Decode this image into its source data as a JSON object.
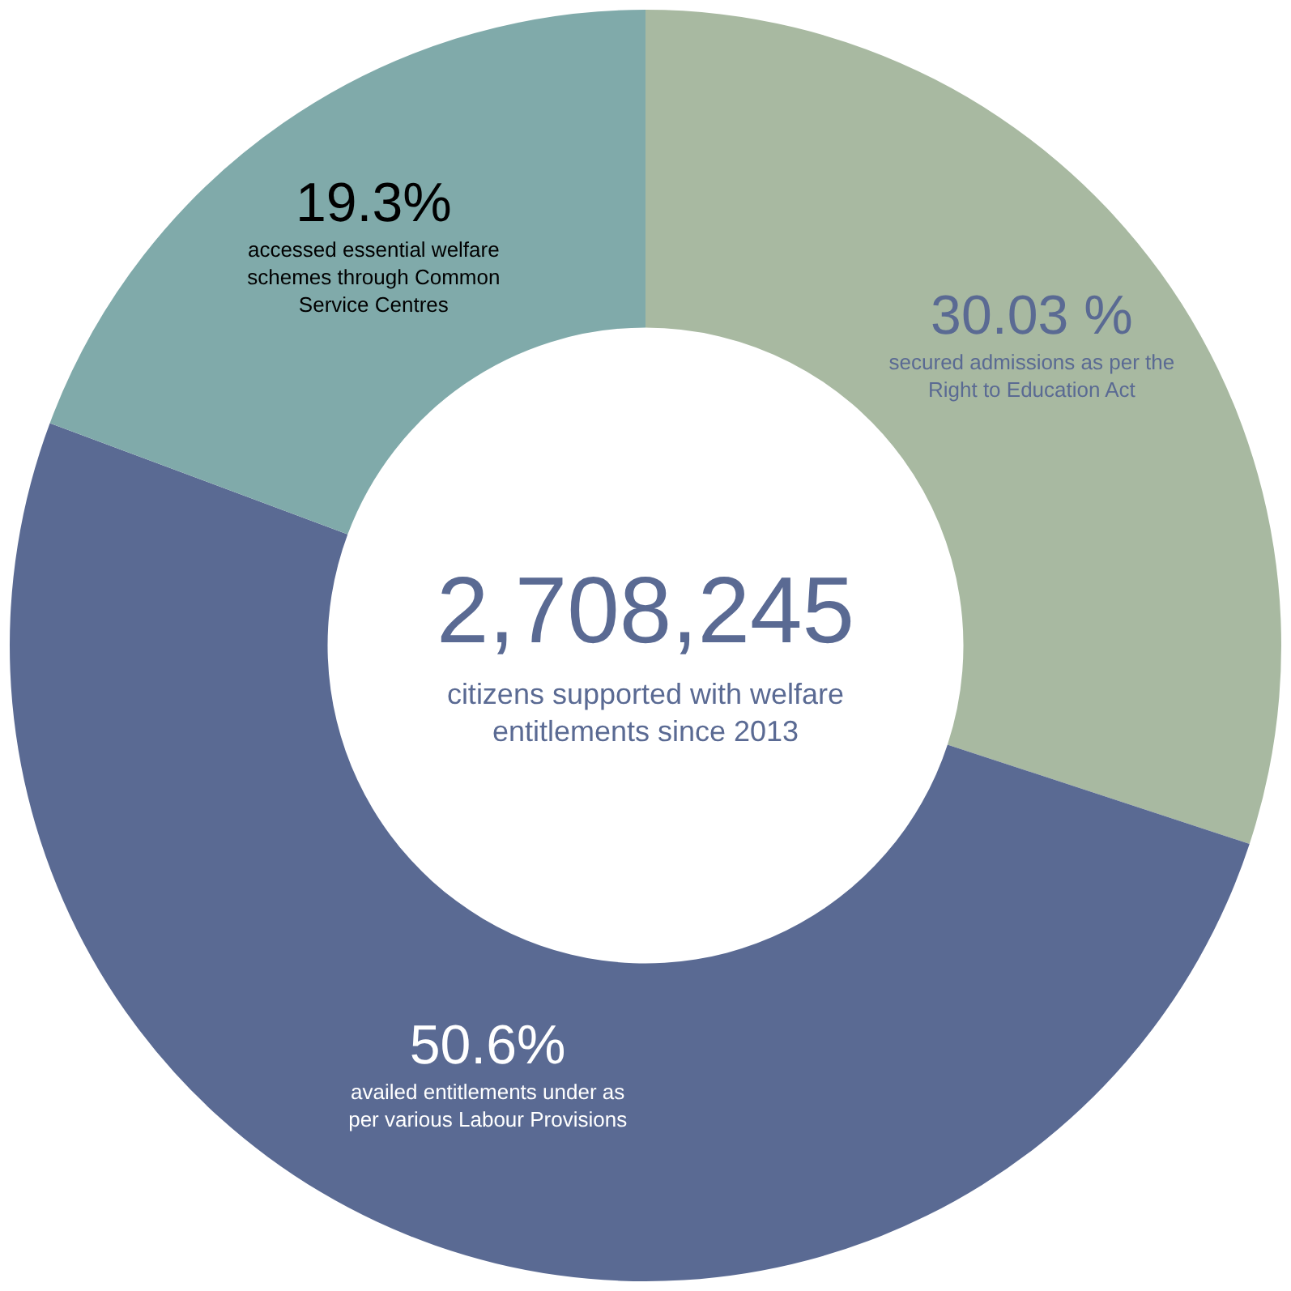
{
  "chart_data": {
    "type": "donut",
    "categories": [
      "secured admissions as per the Right to Education Act",
      "availed entitlements under as per various Labour Provisions",
      "accessed essential welfare schemes through Common Service Centres"
    ],
    "values": [
      30.03,
      50.6,
      19.3
    ],
    "value_labels": [
      "30.03 %",
      "50.6%",
      "19.3%"
    ],
    "colors": [
      "#a8b9a1",
      "#5a6a93",
      "#80aaaa"
    ],
    "annotations": [
      "2,708,245",
      "citizens supported with welfare entitlements since 2013"
    ],
    "legend": false
  }
}
